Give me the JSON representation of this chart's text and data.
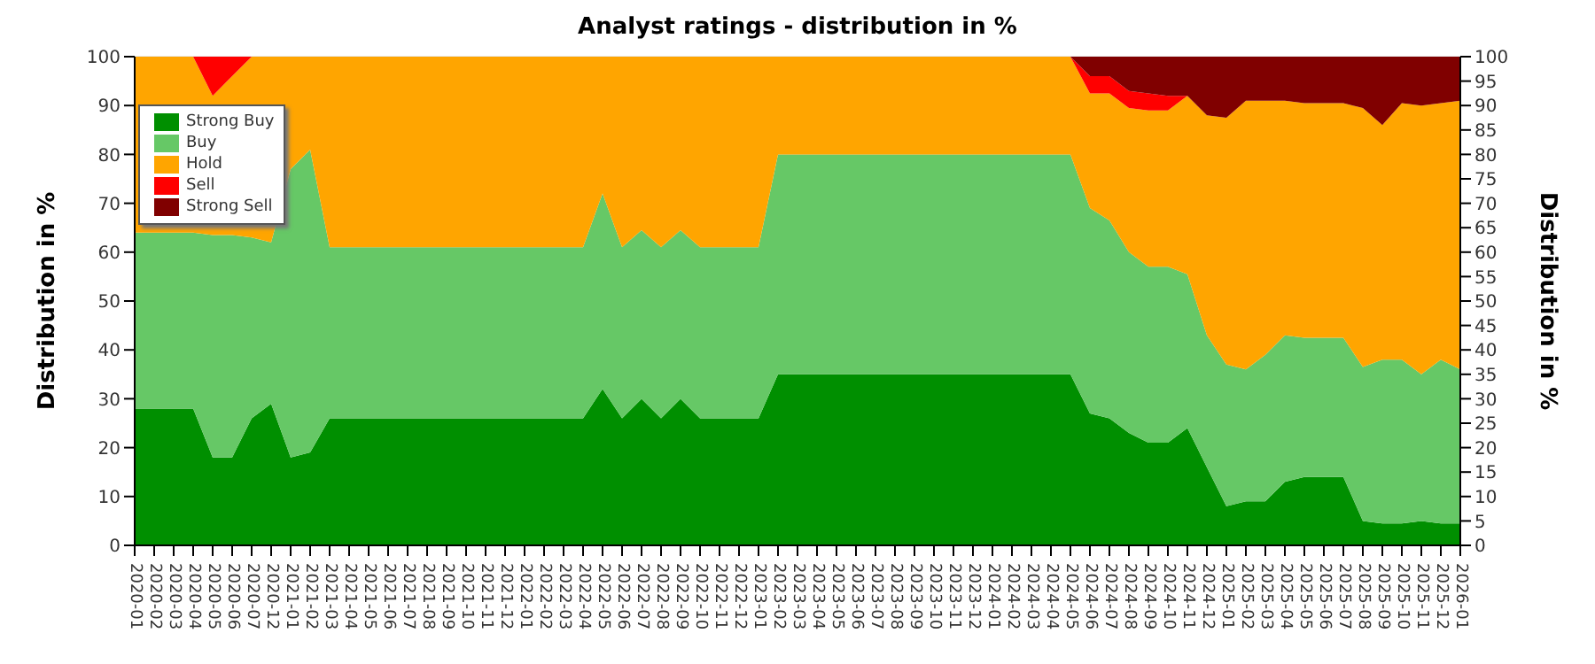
{
  "chart_data": {
    "type": "area",
    "title": "Analyst ratings - distribution in %",
    "ylabel": "Distribution in %",
    "y2label": "Distribution in %",
    "categories": [
      "2020-01",
      "2020-02",
      "2020-03",
      "2020-04",
      "2020-05",
      "2020-06",
      "2020-07",
      "2020-12",
      "2021-01",
      "2021-02",
      "2021-03",
      "2021-04",
      "2021-05",
      "2021-06",
      "2021-07",
      "2021-08",
      "2021-09",
      "2021-10",
      "2021-11",
      "2021-12",
      "2022-01",
      "2022-02",
      "2022-03",
      "2022-04",
      "2022-05",
      "2022-06",
      "2022-07",
      "2022-08",
      "2022-09",
      "2022-10",
      "2022-11",
      "2022-12",
      "2023-01",
      "2023-02",
      "2023-03",
      "2023-04",
      "2023-05",
      "2023-06",
      "2023-07",
      "2023-08",
      "2023-09",
      "2023-10",
      "2023-11",
      "2023-12",
      "2024-01",
      "2024-02",
      "2024-03",
      "2024-04",
      "2024-05",
      "2024-06",
      "2024-07",
      "2024-08",
      "2024-09",
      "2024-10",
      "2024-11",
      "2024-12",
      "2025-01",
      "2025-02",
      "2025-03",
      "2025-04",
      "2025-05",
      "2025-06",
      "2025-07",
      "2025-08",
      "2025-09",
      "2025-10",
      "2025-11",
      "2025-12",
      "2026-01"
    ],
    "stacked": true,
    "ylim": [
      0,
      100
    ],
    "yticks": [
      0,
      10,
      20,
      30,
      40,
      50,
      60,
      70,
      80,
      90,
      100
    ],
    "y2lim": [
      0,
      100
    ],
    "y2ticks": [
      0,
      5,
      10,
      15,
      20,
      25,
      30,
      35,
      40,
      45,
      50,
      55,
      60,
      65,
      70,
      75,
      80,
      85,
      90,
      95,
      100
    ],
    "grid": "y",
    "legend": "top left",
    "series": [
      {
        "name": "Strong Buy",
        "color": "#008f00",
        "values": [
          28,
          28,
          28,
          28,
          18,
          18,
          26,
          29,
          18,
          19,
          26,
          26,
          26,
          26,
          26,
          26,
          26,
          26,
          26,
          26,
          26,
          26,
          26,
          26,
          32,
          26,
          30,
          26,
          30,
          26,
          26,
          26,
          26,
          35,
          35,
          35,
          35,
          35,
          35,
          35,
          35,
          35,
          35,
          35,
          35,
          35,
          35,
          35,
          35,
          27,
          26,
          23,
          21,
          21,
          24,
          16,
          8,
          9,
          9,
          13,
          14,
          14,
          14,
          5,
          4.5,
          4.5,
          5,
          4.5,
          4.5
        ]
      },
      {
        "name": "Buy",
        "color": "#66c866",
        "values": [
          36,
          36,
          36,
          36,
          45.5,
          45.5,
          37,
          33,
          59,
          62,
          35,
          35,
          35,
          35,
          35,
          35,
          35,
          35,
          35,
          35,
          35,
          35,
          35,
          35,
          40,
          35,
          34.5,
          35,
          34.5,
          35,
          35,
          35,
          35,
          45,
          45,
          45,
          45,
          45,
          45,
          45,
          45,
          45,
          45,
          45,
          45,
          45,
          45,
          45,
          45,
          42,
          40.5,
          37,
          36,
          36,
          31.5,
          27,
          29,
          27,
          30,
          30,
          28.5,
          28.5,
          28.5,
          31.5,
          33.5,
          33.5,
          30,
          33.5,
          31.5
        ]
      },
      {
        "name": "Hold",
        "color": "#ffa500",
        "values": [
          36,
          36,
          36,
          36,
          28.5,
          32.5,
          37,
          38,
          23,
          19,
          39,
          39,
          39,
          39,
          39,
          39,
          39,
          39,
          39,
          39,
          39,
          39,
          39,
          39,
          28,
          39,
          35.5,
          39,
          35.5,
          39,
          39,
          39,
          39,
          20,
          20,
          20,
          20,
          20,
          20,
          20,
          20,
          20,
          20,
          20,
          20,
          20,
          20,
          20,
          20,
          23.5,
          26,
          29.5,
          32,
          32,
          36.5,
          45,
          50.5,
          55,
          52,
          48,
          48,
          48,
          48,
          53,
          48,
          52.5,
          55,
          52.5,
          55
        ]
      },
      {
        "name": "Sell",
        "color": "#ff0000",
        "values": [
          0,
          0,
          0,
          0,
          8,
          4,
          0,
          0,
          0,
          0,
          0,
          0,
          0,
          0,
          0,
          0,
          0,
          0,
          0,
          0,
          0,
          0,
          0,
          0,
          0,
          0,
          0,
          0,
          0,
          0,
          0,
          0,
          0,
          0,
          0,
          0,
          0,
          0,
          0,
          0,
          0,
          0,
          0,
          0,
          0,
          0,
          0,
          0,
          0,
          3.5,
          3.5,
          3.5,
          3.5,
          3,
          0,
          0,
          0,
          0,
          0,
          0,
          0,
          0,
          0,
          0,
          0,
          0,
          0,
          0,
          0
        ]
      },
      {
        "name": "Strong Sell",
        "color": "#800000",
        "values": [
          null,
          null,
          null,
          null,
          null,
          null,
          null,
          null,
          null,
          null,
          null,
          null,
          null,
          null,
          null,
          null,
          null,
          null,
          null,
          null,
          null,
          null,
          null,
          null,
          null,
          null,
          null,
          null,
          null,
          null,
          null,
          null,
          null,
          null,
          null,
          null,
          null,
          null,
          null,
          null,
          null,
          null,
          null,
          null,
          null,
          null,
          null,
          null,
          0,
          4,
          4,
          7,
          7.5,
          8,
          8,
          12,
          12.5,
          9,
          9,
          9,
          9.5,
          9.5,
          9.5,
          10.5,
          14,
          9.5,
          10,
          9.5,
          9
        ]
      }
    ]
  }
}
